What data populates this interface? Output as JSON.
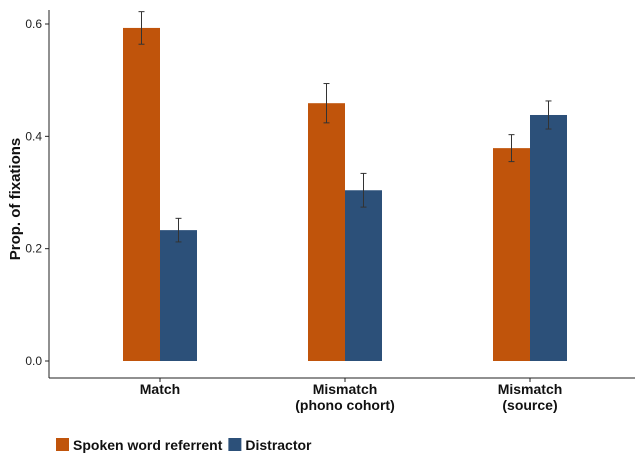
{
  "chart_data": {
    "type": "bar",
    "title": "",
    "xlabel": "",
    "ylabel": "Prop. of fixations",
    "ylim": [
      0,
      0.63
    ],
    "yticks": [
      "0.0",
      "0.2",
      "0.4",
      "0.6"
    ],
    "ytick_values": [
      0,
      0.2,
      0.4,
      0.6
    ],
    "categories": [
      [
        "Match"
      ],
      [
        "Mismatch",
        "(phono cohort)"
      ],
      [
        "Mismatch",
        "(source)"
      ]
    ],
    "series": [
      {
        "name": "Spoken word referrent",
        "color": "#c0540b",
        "values": [
          0.593,
          0.459,
          0.379
        ],
        "err": [
          0.029,
          0.035,
          0.024
        ]
      },
      {
        "name": "Distractor",
        "color": "#2c5079",
        "values": [
          0.233,
          0.304,
          0.438
        ],
        "err": [
          0.021,
          0.03,
          0.025
        ]
      }
    ],
    "grid": false,
    "legend": "bottom-left"
  }
}
